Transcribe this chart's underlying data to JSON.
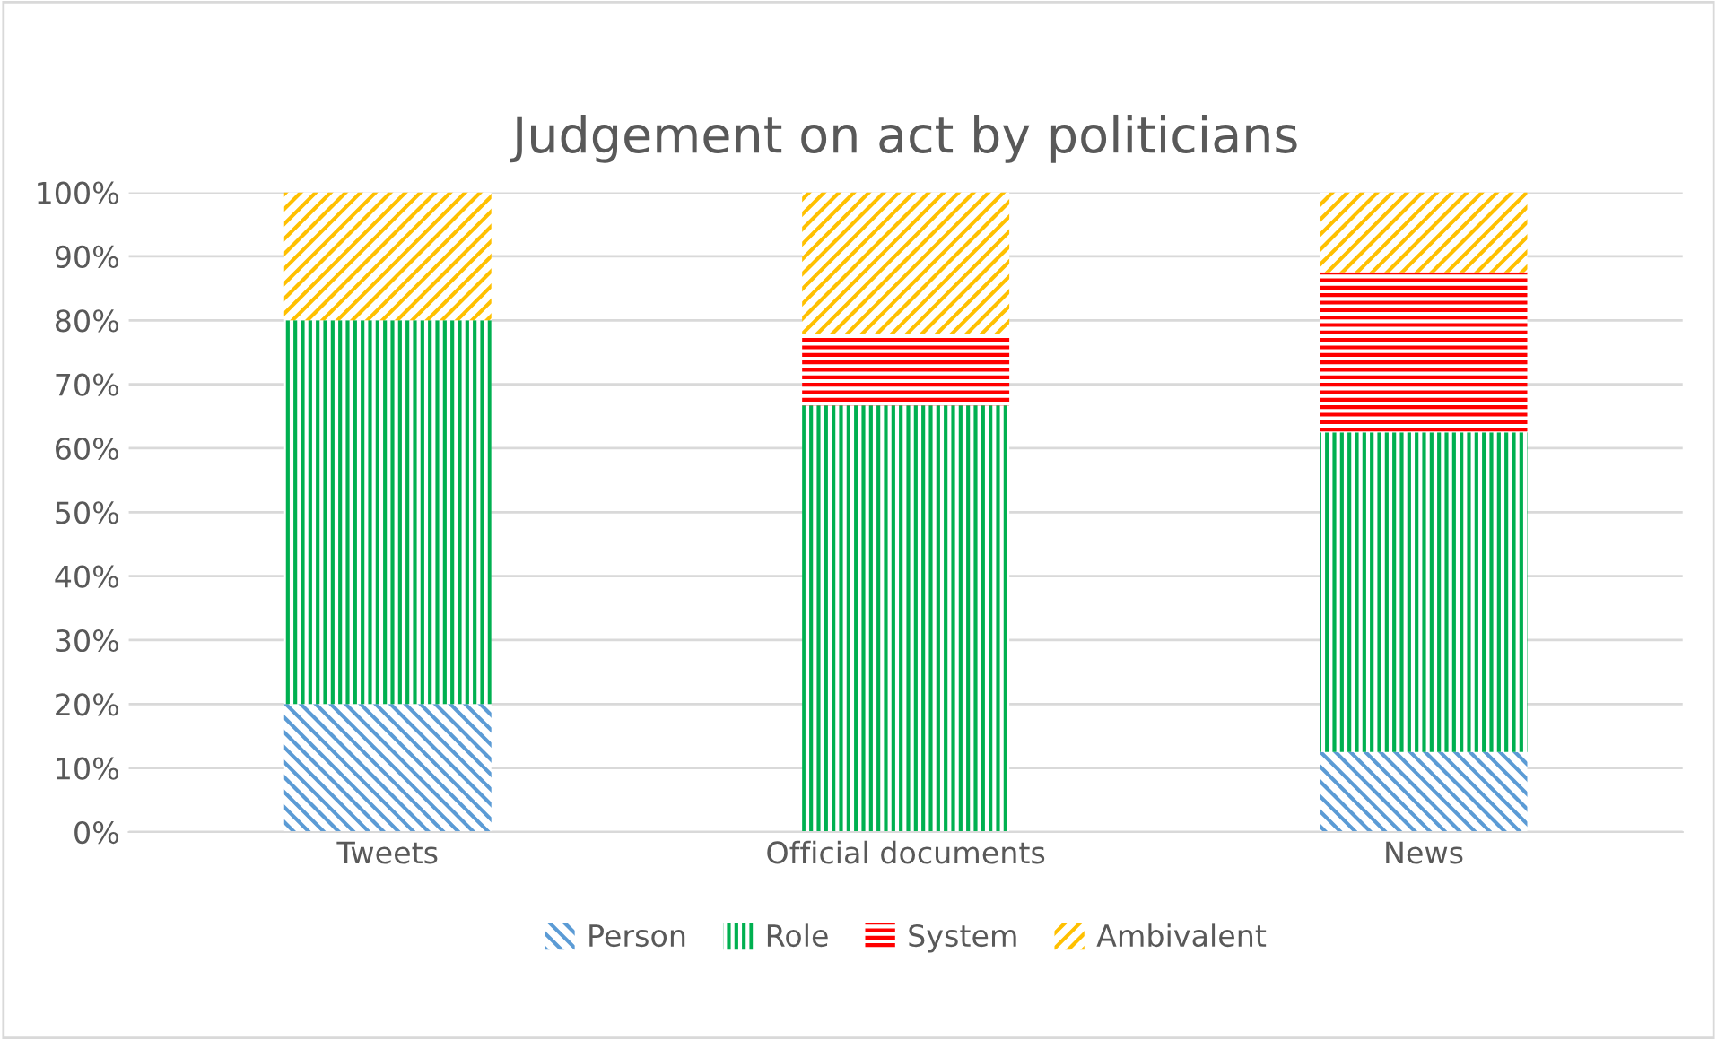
{
  "chart_data": {
    "type": "bar",
    "stacked": true,
    "title": "Judgement on act by politicians",
    "categories": [
      "Tweets",
      "Official documents",
      "News"
    ],
    "series": [
      {
        "name": "Person",
        "color": "#5b9bd5",
        "values": [
          20,
          0,
          12.5
        ]
      },
      {
        "name": "Role",
        "color": "#00b050",
        "values": [
          60,
          66.7,
          50
        ]
      },
      {
        "name": "System",
        "color": "#ff0000",
        "values": [
          0,
          11.1,
          25
        ]
      },
      {
        "name": "Ambivalent",
        "color": "#ffc000",
        "values": [
          20,
          22.2,
          12.5
        ]
      }
    ],
    "ylim": [
      0,
      100
    ],
    "yticks": [
      {
        "value": 0,
        "label": "0%"
      },
      {
        "value": 10,
        "label": "10%"
      },
      {
        "value": 20,
        "label": "20%"
      },
      {
        "value": 30,
        "label": "30%"
      },
      {
        "value": 40,
        "label": "40%"
      },
      {
        "value": 50,
        "label": "50%"
      },
      {
        "value": 60,
        "label": "60%"
      },
      {
        "value": 70,
        "label": "70%"
      },
      {
        "value": 80,
        "label": "80%"
      },
      {
        "value": 90,
        "label": "90%"
      },
      {
        "value": 100,
        "label": "100%"
      }
    ],
    "grid": "y",
    "legend": "bottom"
  }
}
